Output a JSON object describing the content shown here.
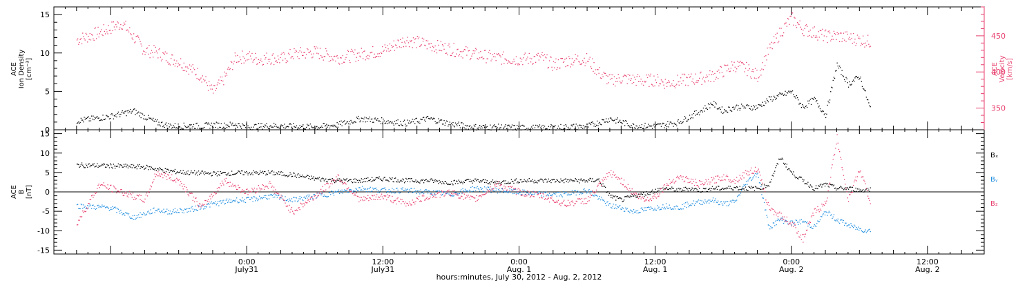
{
  "chart_data": [
    {
      "type": "scatter",
      "panel": "top",
      "ylabel": [
        "ACE",
        "Ion Density",
        "[cm⁻³]"
      ],
      "ylim": [
        0,
        16
      ],
      "yticks": [
        "0",
        "5",
        "10",
        "15"
      ],
      "y2label": [
        "ACE",
        "Velocity",
        "[km/s]"
      ],
      "y2lim": [
        320,
        490
      ],
      "y2ticks": [
        "350",
        "400",
        "450"
      ],
      "series": [
        {
          "name": "Ion Density",
          "axis": "left",
          "color": "#000000",
          "x": [
            -15,
            -12,
            -10,
            -8,
            -7,
            -6,
            -5,
            -4,
            -3,
            -2,
            -1,
            0,
            2,
            4,
            6,
            8,
            10,
            12,
            14,
            16,
            18,
            20,
            22,
            24,
            26,
            28,
            30,
            32,
            34,
            36,
            38,
            40,
            41,
            42,
            43,
            44,
            45,
            46,
            47,
            48,
            49,
            50,
            51,
            52,
            53,
            54,
            55
          ],
          "y": [
            1.2,
            1.8,
            2.5,
            1.0,
            0.6,
            0.5,
            0.6,
            0.5,
            0.7,
            0.6,
            0.8,
            0.4,
            0.6,
            0.5,
            0.4,
            0.7,
            1.5,
            1.2,
            0.9,
            1.5,
            0.8,
            0.4,
            0.4,
            0.3,
            0.3,
            0.4,
            0.5,
            1.5,
            0.6,
            0.5,
            1.0,
            2.5,
            3.5,
            2.5,
            3.0,
            3.0,
            3.0,
            4.0,
            4.5,
            5.0,
            3.0,
            4.0,
            2.0,
            8.5,
            6.0,
            7.0,
            2.5
          ]
        },
        {
          "name": "Velocity",
          "axis": "right",
          "color": "#e83e6d",
          "x": [
            -15,
            -13,
            -11,
            -9,
            -8,
            -7,
            -6,
            -5,
            -4,
            -3,
            -2,
            -1,
            0,
            1,
            2,
            3,
            4,
            6,
            8,
            10,
            12,
            14,
            16,
            18,
            20,
            22,
            24,
            26,
            27,
            28,
            29,
            30,
            31,
            32,
            33,
            34,
            35,
            36,
            37,
            38,
            39,
            40,
            41,
            42,
            43,
            44,
            45,
            46,
            47,
            48,
            49,
            50,
            51,
            52,
            53,
            54,
            55
          ],
          "y": [
            445,
            455,
            468,
            430,
            428,
            420,
            415,
            405,
            395,
            372,
            392,
            420,
            422,
            418,
            420,
            418,
            425,
            428,
            420,
            425,
            430,
            445,
            438,
            432,
            425,
            420,
            418,
            420,
            410,
            415,
            418,
            418,
            400,
            388,
            392,
            390,
            388,
            390,
            385,
            388,
            390,
            392,
            395,
            402,
            410,
            405,
            395,
            430,
            455,
            475,
            460,
            455,
            450,
            450,
            448,
            445,
            442
          ]
        }
      ]
    },
    {
      "type": "scatter",
      "panel": "bottom",
      "ylabel": [
        "ACE",
        "B",
        "[nT]"
      ],
      "ylim": [
        -16,
        16
      ],
      "yticks": [
        "-15",
        "-10",
        "-5",
        "0",
        "5",
        "10",
        "15"
      ],
      "legend": [
        "Bₓ",
        "Bᵧ",
        "B₂"
      ],
      "series": [
        {
          "name": "Bx",
          "color": "#000000",
          "x": [
            -15,
            -12,
            -9,
            -7,
            -5,
            -3,
            0,
            2,
            4,
            6,
            8,
            10,
            12,
            14,
            16,
            18,
            20,
            22,
            24,
            26,
            28,
            30,
            31,
            32,
            33,
            34,
            35,
            36,
            37,
            38,
            39,
            40,
            41,
            42,
            43,
            44,
            45,
            46,
            47,
            48,
            49,
            50,
            51,
            52,
            53,
            54,
            55
          ],
          "y": [
            7,
            6.8,
            6.5,
            5.5,
            5.0,
            4.8,
            5.0,
            5.0,
            4.5,
            3.5,
            3.0,
            3.0,
            3.5,
            3.0,
            3.0,
            2.5,
            3.0,
            2.5,
            3.0,
            3.0,
            3.0,
            3.0,
            3.2,
            -1.0,
            -2.0,
            -1.0,
            -0.5,
            0.5,
            1.0,
            0.5,
            1.0,
            0.5,
            1.0,
            1.0,
            1.2,
            1.0,
            1.0,
            2.0,
            9.0,
            5.0,
            3.0,
            1.0,
            2.0,
            1.0,
            1.0,
            0.5,
            0.8
          ]
        },
        {
          "name": "By",
          "color": "#1f8ee0",
          "x": [
            -15,
            -12,
            -10,
            -8,
            -7,
            -5,
            -3,
            -1,
            0,
            2,
            4,
            6,
            8,
            10,
            12,
            14,
            16,
            18,
            20,
            22,
            24,
            26,
            28,
            30,
            32,
            33,
            34,
            35,
            36,
            37,
            38,
            39,
            40,
            41,
            42,
            43,
            44,
            45,
            46,
            47,
            48,
            49,
            50,
            51,
            52,
            53,
            54,
            55
          ],
          "y": [
            -3.5,
            -4.0,
            -6.5,
            -4.5,
            -5.0,
            -4.5,
            -3.0,
            -2.0,
            -2.0,
            -1.0,
            -2.0,
            -1.0,
            0.0,
            1.0,
            0.5,
            0.5,
            0.0,
            -0.5,
            1.0,
            0.5,
            0.0,
            -0.5,
            -0.5,
            0.5,
            -3.5,
            -4.0,
            -5.0,
            -4.5,
            -4.0,
            -3.5,
            -4.0,
            -3.0,
            -2.5,
            -2.0,
            -3.0,
            -2.5,
            2.5,
            5.0,
            -9.0,
            -7.0,
            -8.0,
            -7.5,
            -9.0,
            -5.0,
            -7.0,
            -8.5,
            -9.5,
            -10.0
          ]
        },
        {
          "name": "Bz",
          "color": "#e83e6d",
          "x": [
            -15,
            -13,
            -11,
            -9,
            -8,
            -6,
            -4,
            -2,
            0,
            2,
            4,
            6,
            8,
            10,
            12,
            14,
            16,
            18,
            20,
            22,
            24,
            26,
            28,
            30,
            32,
            33,
            34,
            35,
            36,
            37,
            38,
            39,
            40,
            41,
            42,
            43,
            44,
            45,
            46,
            47,
            48,
            49,
            50,
            51,
            52,
            53,
            54,
            55
          ],
          "y": [
            -8,
            2,
            0,
            -2,
            5,
            3,
            -4,
            3,
            0,
            2,
            -5,
            -1,
            4,
            -2,
            -1,
            -3,
            -1,
            0,
            -2,
            2,
            0,
            -1,
            -3,
            -2,
            5,
            3,
            0,
            -2,
            -1,
            2,
            4,
            3,
            2,
            3,
            4,
            3,
            5,
            6,
            -4,
            -6,
            -8,
            -12,
            -5,
            -3,
            14,
            -2,
            6,
            -3
          ]
        }
      ]
    }
  ],
  "xaxis": {
    "title": "hours:minutes, July 30, 2012 - Aug. 2, 2012",
    "xlim": [
      -17,
      65
    ],
    "major_ticks": [
      0,
      12,
      24,
      36,
      48
    ],
    "tick_labels_line1": [
      "0:00",
      "12:00",
      "0:00",
      "12:00",
      "0:00",
      "12:00"
    ],
    "tick_labels_line2": [
      "July31",
      "July31",
      "Aug. 1",
      "Aug. 1",
      "Aug. 2",
      "Aug. 2"
    ],
    "tick_positions": [
      0,
      12,
      24,
      36,
      48,
      60
    ]
  },
  "colors": {
    "axis": "#000000",
    "pink": "#e83e6d",
    "blue": "#1f8ee0"
  }
}
